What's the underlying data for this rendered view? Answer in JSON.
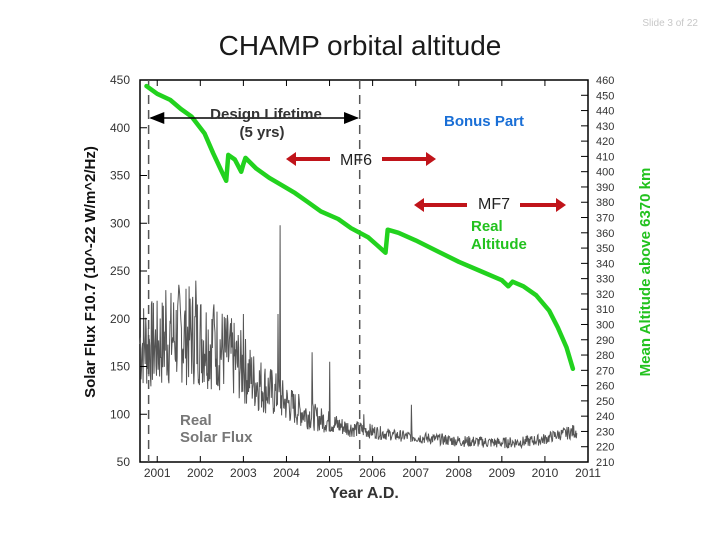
{
  "slide": {
    "number_label": "Slide 3 of 22",
    "title": "CHAMP orbital altitude"
  },
  "colors": {
    "altitude": "#22d21e",
    "solar_flux": "#555555",
    "arrow": "#c0141a",
    "bonus": "#1a6fd6",
    "axis": "#000000"
  },
  "chart_data": {
    "type": "line",
    "xlabel": "Year A.D.",
    "ylabel_left": "Solar Flux F10.7 (10^-22 W/m^2/Hz)",
    "ylabel_right": "Mean Altitude above 6370 km",
    "xlim": [
      2000.6,
      2011.0
    ],
    "ylim_left": [
      50,
      450
    ],
    "ylim_right": [
      210,
      460
    ],
    "x_ticks": [
      "2001",
      "2002",
      "2003",
      "2004",
      "2005",
      "2006",
      "2007",
      "2008",
      "2009",
      "2010",
      "2011"
    ],
    "y_left_ticks": [
      "50",
      "100",
      "150",
      "200",
      "250",
      "300",
      "350",
      "400",
      "450"
    ],
    "y_right_ticks": [
      "210",
      "220",
      "230",
      "240",
      "250",
      "260",
      "270",
      "280",
      "290",
      "300",
      "310",
      "320",
      "330",
      "340",
      "350",
      "360",
      "370",
      "380",
      "390",
      "400",
      "410",
      "420",
      "430",
      "440",
      "450",
      "460"
    ],
    "vlines": [
      2000.8,
      2005.7
    ],
    "series": [
      {
        "key": "altitude",
        "axis": "right",
        "x": [
          2000.75,
          2001.0,
          2001.3,
          2001.55,
          2001.8,
          2002.1,
          2002.3,
          2002.5,
          2002.6,
          2002.65,
          2002.8,
          2002.95,
          2003.0,
          2003.05,
          2003.3,
          2003.6,
          2003.9,
          2004.2,
          2004.5,
          2004.8,
          2005.2,
          2005.5,
          2005.9,
          2006.1,
          2006.3,
          2006.35,
          2006.6,
          2007.0,
          2007.5,
          2008.0,
          2008.5,
          2009.0,
          2009.15,
          2009.25,
          2009.5,
          2009.8,
          2010.1,
          2010.3,
          2010.5,
          2010.65
        ],
        "y": [
          456,
          451,
          447,
          441,
          436,
          425,
          412,
          400,
          394,
          411,
          408,
          400,
          405,
          409,
          402,
          396,
          391,
          386,
          380,
          374,
          369,
          363,
          357,
          352,
          347,
          362,
          360,
          355,
          348,
          341,
          335,
          329,
          325,
          328,
          325,
          319,
          309,
          298,
          285,
          271
        ]
      },
      {
        "key": "solar_flux",
        "axis": "left",
        "x": [
          2000.0,
          2000.5,
          2001.0,
          2001.25,
          2001.5,
          2001.75,
          2002.0,
          2002.25,
          2002.5,
          2002.75,
          2003.0,
          2003.25,
          2003.5,
          2003.75,
          2004.0,
          2004.25,
          2004.5,
          2004.75,
          2005.0,
          2005.25,
          2005.5,
          2005.75,
          2006.0,
          2006.25,
          2006.5,
          2006.75,
          2007.0,
          2007.5,
          2008.0,
          2008.5,
          2009.0,
          2009.5,
          2010.0,
          2010.25,
          2010.5,
          2010.75
        ],
        "y": [
          175,
          175,
          172,
          178,
          185,
          182,
          180,
          175,
          168,
          158,
          148,
          135,
          128,
          120,
          112,
          105,
          100,
          95,
          92,
          88,
          85,
          84,
          82,
          80,
          78,
          77,
          76,
          74,
          72,
          71,
          70,
          71,
          74,
          78,
          80,
          83
        ],
        "peaks": [
          {
            "x": 2001.2,
            "y": 230
          },
          {
            "x": 2001.9,
            "y": 240
          },
          {
            "x": 2002.3,
            "y": 210
          },
          {
            "x": 2003.0,
            "y": 205
          },
          {
            "x": 2003.8,
            "y": 205
          },
          {
            "x": 2003.85,
            "y": 298
          },
          {
            "x": 2004.6,
            "y": 165
          },
          {
            "x": 2005.0,
            "y": 155
          },
          {
            "x": 2005.8,
            "y": 100
          },
          {
            "x": 2006.9,
            "y": 110
          }
        ]
      }
    ],
    "annotations": {
      "design_lifetime_line1": "Design Lifetime",
      "design_lifetime_line2": "(5 yrs)",
      "bonus_part": "Bonus Part",
      "mf6": "MF6",
      "mf7": "MF7",
      "real_altitude_line1": "Real",
      "real_altitude_line2": "Altitude",
      "real_flux_line1": "Real",
      "real_flux_line2": "Solar Flux"
    }
  }
}
